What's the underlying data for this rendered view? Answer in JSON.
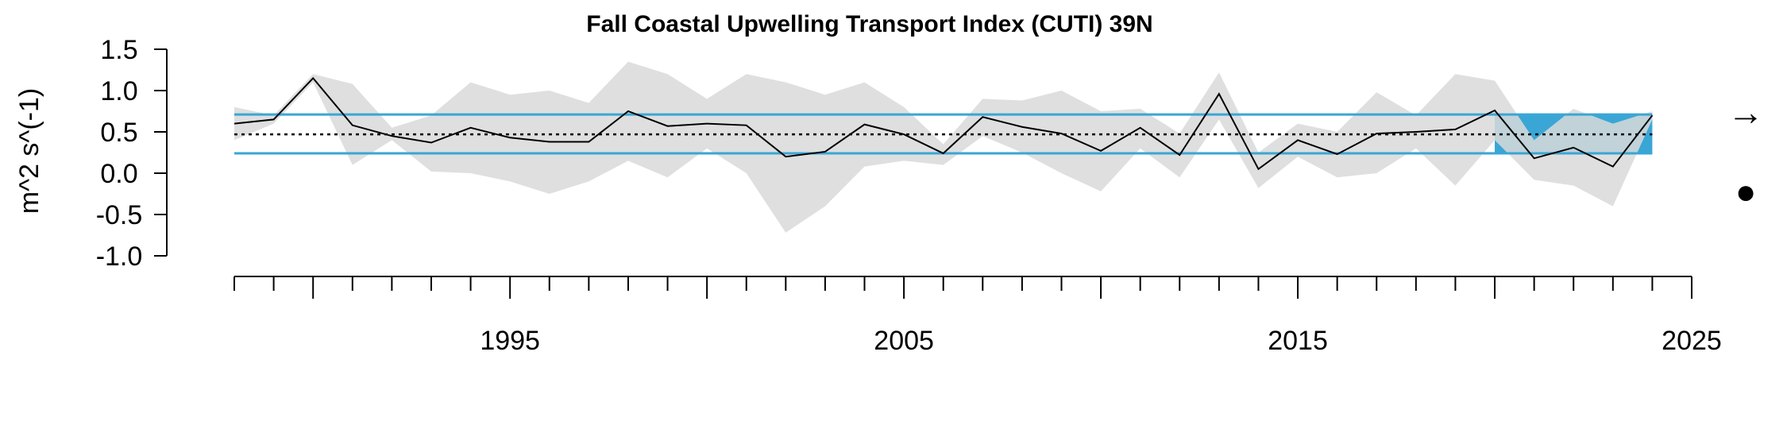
{
  "chart_data": {
    "type": "line",
    "title": "Fall Coastal Upwelling Transport Index (CUTI) 39N",
    "xlabel": "",
    "ylabel": "m^2 s^(-1)",
    "xlim": [
      1988,
      2025
    ],
    "ylim": [
      -1.0,
      1.5
    ],
    "x_ticks": [
      1995,
      2005,
      2015,
      2025
    ],
    "y_ticks": [
      "1.5",
      "1.0",
      "0.5",
      "0.0",
      "-0.5",
      "-1.0"
    ],
    "x": [
      1988,
      1989,
      1990,
      1991,
      1992,
      1993,
      1994,
      1995,
      1996,
      1997,
      1998,
      1999,
      2000,
      2001,
      2002,
      2003,
      2004,
      2005,
      2006,
      2007,
      2008,
      2009,
      2010,
      2011,
      2012,
      2013,
      2014,
      2015,
      2016,
      2017,
      2018,
      2019,
      2020,
      2021,
      2022,
      2023,
      2024
    ],
    "series": [
      {
        "values": [
          0.6,
          0.65,
          1.15,
          0.58,
          0.45,
          0.37,
          0.55,
          0.43,
          0.38,
          0.38,
          0.75,
          0.57,
          0.6,
          0.58,
          0.2,
          0.26,
          0.59,
          0.47,
          0.24,
          0.68,
          0.56,
          0.48,
          0.27,
          0.55,
          0.22,
          0.96,
          0.05,
          0.4,
          0.23,
          0.48,
          0.5,
          0.53,
          0.76,
          0.18,
          0.31,
          0.08,
          0.7
        ],
        "lower": [
          0.4,
          0.6,
          1.1,
          0.1,
          0.4,
          0.02,
          0.0,
          -0.1,
          -0.25,
          -0.1,
          0.15,
          -0.05,
          0.3,
          0.0,
          -0.72,
          -0.4,
          0.08,
          0.15,
          0.1,
          0.45,
          0.25,
          0.0,
          -0.22,
          0.3,
          -0.05,
          0.65,
          -0.18,
          0.2,
          -0.05,
          0.0,
          0.3,
          -0.15,
          0.4,
          -0.08,
          -0.15,
          -0.4,
          0.65
        ],
        "upper": [
          0.8,
          0.7,
          1.2,
          1.08,
          0.55,
          0.7,
          1.1,
          0.95,
          1.0,
          0.85,
          1.35,
          1.2,
          0.9,
          1.2,
          1.1,
          0.95,
          1.1,
          0.8,
          0.35,
          0.9,
          0.88,
          1.0,
          0.75,
          0.78,
          0.48,
          1.22,
          0.25,
          0.6,
          0.5,
          0.98,
          0.7,
          1.2,
          1.12,
          0.4,
          0.78,
          0.6,
          0.75
        ]
      }
    ],
    "mean": 0.47,
    "sd_upper": 0.71,
    "sd_lower": 0.24,
    "recent_window_start": 2020,
    "trend_symbol": "→",
    "mean_symbol": "●",
    "colors": {
      "line": "#000000",
      "ci_band": "#d9d9d9",
      "sd_lines": "#3aa6d5",
      "recent_shade": "#3aa6d5",
      "mean_line": "#000000"
    },
    "grid": false,
    "legend": "none"
  }
}
